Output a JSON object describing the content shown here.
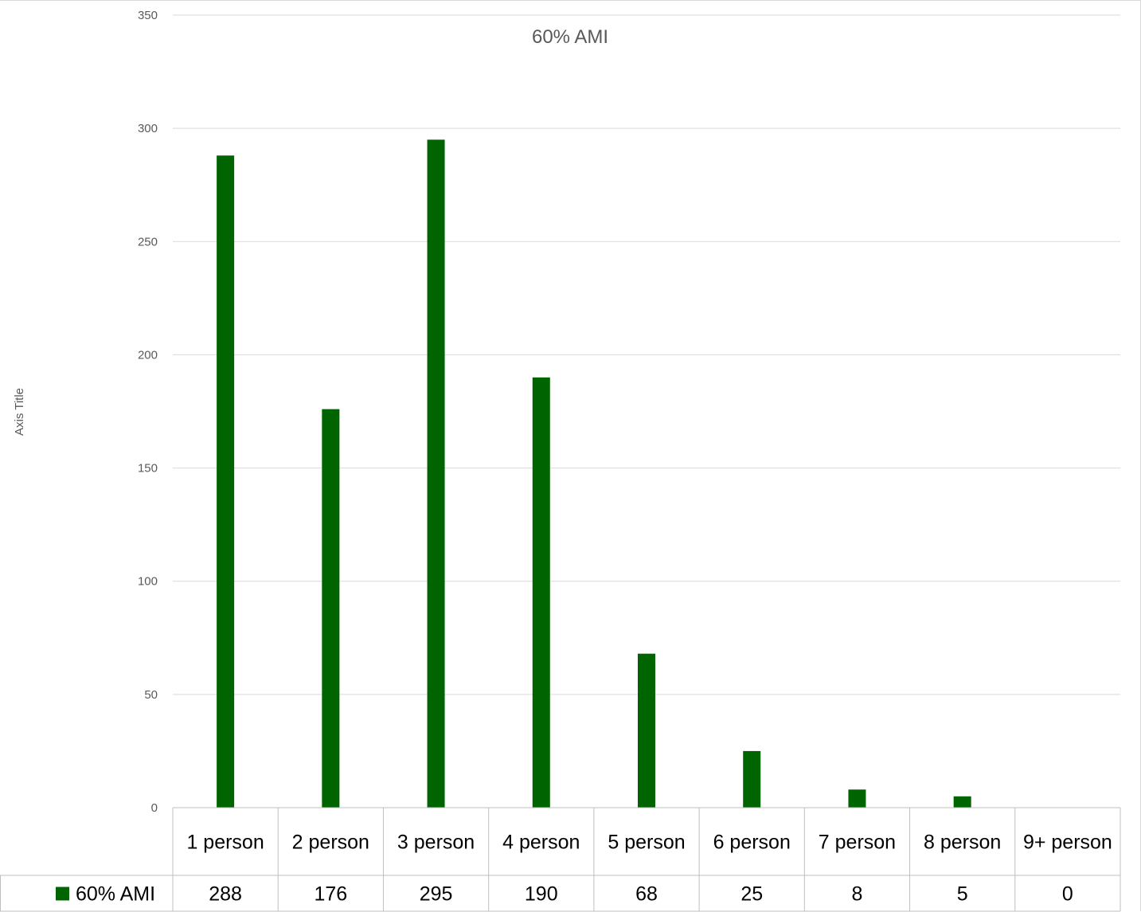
{
  "chart_data": {
    "type": "bar",
    "title": "60% AMI",
    "ylabel": "Axis Title",
    "xlabel": "",
    "ylim": [
      0,
      350
    ],
    "yticks": [
      0,
      50,
      100,
      150,
      200,
      250,
      300,
      350
    ],
    "grid": true,
    "legend": "data-table",
    "categories": [
      "1 person",
      "2 person",
      "3 person",
      "4 person",
      "5 person",
      "6 person",
      "7 person",
      "8 person",
      "9+ person"
    ],
    "series": [
      {
        "name": "60% AMI",
        "values": [
          288,
          176,
          295,
          190,
          68,
          25,
          8,
          5,
          0
        ],
        "color": "#006400"
      }
    ]
  }
}
